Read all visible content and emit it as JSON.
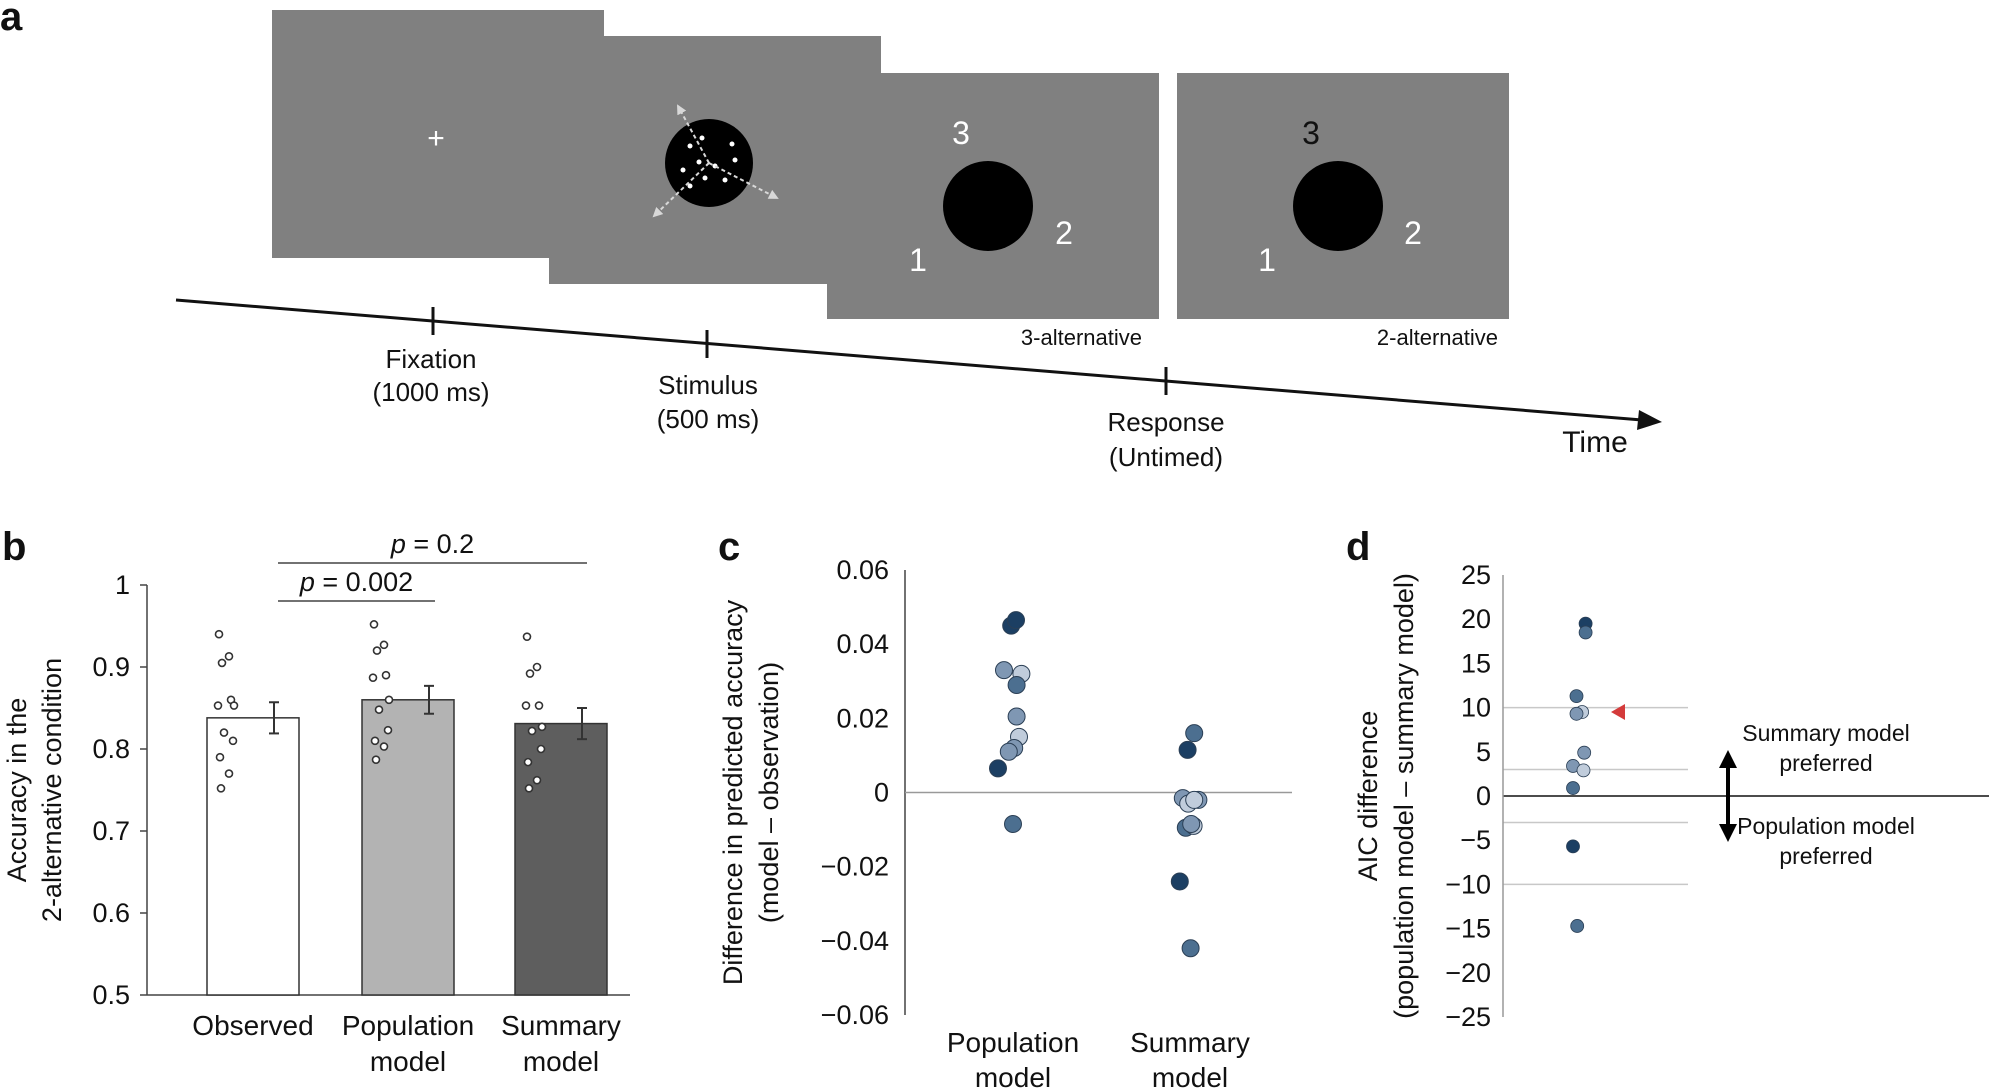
{
  "panel_labels": [
    "a",
    "b",
    "c",
    "d"
  ],
  "timeline": {
    "events": [
      {
        "name": "Fixation",
        "duration": "(1000 ms)"
      },
      {
        "name": "Stimulus",
        "duration": "(500 ms)"
      },
      {
        "name": "Response",
        "duration": "(Untimed)"
      }
    ],
    "axis_label": "Time",
    "fixation_symbol": "+",
    "response_screens": [
      {
        "numbers": [
          "1",
          "2",
          "3"
        ],
        "condition": "3-alternative"
      },
      {
        "numbers": [
          "1",
          "2",
          "3"
        ],
        "condition": "2-alternative"
      }
    ]
  },
  "colors": {
    "screen_gray": "#808080",
    "bar_observed": "#ffffff",
    "bar_population": "#b3b3b3",
    "bar_summary": "#5e5e5e",
    "dot_dark": "#1c3f63",
    "dot_mid": "#4c6f90",
    "dot_light": "#7f97b3",
    "dot_pale": "#c0ccdb",
    "marker_red": "#d43b3b"
  },
  "chart_data": [
    {
      "panel": "b",
      "type": "bar",
      "categories": [
        [
          "Observed"
        ],
        [
          "Population",
          "model"
        ],
        [
          "Summary",
          "model"
        ]
      ],
      "values": [
        0.838,
        0.86,
        0.831
      ],
      "errors": [
        0.019,
        0.017,
        0.019
      ],
      "points": [
        [
          0.94,
          0.913,
          0.905,
          0.86,
          0.853,
          0.853,
          0.82,
          0.81,
          0.79,
          0.77,
          0.752
        ],
        [
          0.952,
          0.927,
          0.92,
          0.89,
          0.887,
          0.86,
          0.848,
          0.823,
          0.81,
          0.803,
          0.787
        ],
        [
          0.937,
          0.9,
          0.892,
          0.853,
          0.853,
          0.827,
          0.822,
          0.8,
          0.784,
          0.762,
          0.752
        ]
      ],
      "ylabel": [
        "Accuracy in the",
        "2-alternative condition"
      ],
      "ylim": [
        0.5,
        1
      ],
      "yticks": [
        "0.5",
        "0.6",
        "0.7",
        "0.8",
        "0.9",
        "1"
      ],
      "significance": [
        {
          "from": 0,
          "to": 1,
          "label_italic": "p",
          "label_rest": " = 0.002"
        },
        {
          "from": 0,
          "to": 2,
          "label_italic": "p",
          "label_rest": " = 0.2"
        }
      ]
    },
    {
      "panel": "c",
      "type": "scatter",
      "categories": [
        [
          "Population",
          "model"
        ],
        [
          "Summary",
          "model"
        ]
      ],
      "ylabel": [
        "Difference in predicted accuracy",
        "(model – observation)"
      ],
      "ylim": [
        -0.06,
        0.06
      ],
      "yticks": [
        "−0.06",
        "−0.04",
        "−0.02",
        "0",
        "0.02",
        "0.04",
        "0.06"
      ],
      "series": [
        {
          "name": "Population model",
          "points": [
            {
              "jitter": -0.03,
              "y": 0.045,
              "shade": "dark"
            },
            {
              "jitter": 0.05,
              "y": 0.0465,
              "shade": "dark"
            },
            {
              "jitter": -0.15,
              "y": 0.033,
              "shade": "light"
            },
            {
              "jitter": 0.14,
              "y": 0.032,
              "shade": "pale"
            },
            {
              "jitter": 0.06,
              "y": 0.029,
              "shade": "mid"
            },
            {
              "jitter": 0.06,
              "y": 0.0205,
              "shade": "light"
            },
            {
              "jitter": 0.1,
              "y": 0.015,
              "shade": "pale"
            },
            {
              "jitter": 0.02,
              "y": 0.012,
              "shade": "light"
            },
            {
              "jitter": -0.07,
              "y": 0.011,
              "shade": "light"
            },
            {
              "jitter": -0.25,
              "y": 0.0065,
              "shade": "dark"
            },
            {
              "jitter": 0.0,
              "y": -0.0085,
              "shade": "mid"
            }
          ]
        },
        {
          "name": "Summary model",
          "points": [
            {
              "jitter": 0.07,
              "y": 0.016,
              "shade": "mid"
            },
            {
              "jitter": -0.04,
              "y": 0.0115,
              "shade": "dark"
            },
            {
              "jitter": -0.12,
              "y": -0.0015,
              "shade": "light"
            },
            {
              "jitter": 0.14,
              "y": -0.002,
              "shade": "light"
            },
            {
              "jitter": -0.03,
              "y": -0.003,
              "shade": "pale"
            },
            {
              "jitter": 0.07,
              "y": -0.002,
              "shade": "pale"
            },
            {
              "jitter": -0.07,
              "y": -0.0095,
              "shade": "mid"
            },
            {
              "jitter": 0.06,
              "y": -0.009,
              "shade": "pale"
            },
            {
              "jitter": 0.02,
              "y": -0.0085,
              "shade": "light"
            },
            {
              "jitter": -0.17,
              "y": -0.024,
              "shade": "dark"
            },
            {
              "jitter": 0.01,
              "y": -0.042,
              "shade": "mid"
            }
          ]
        }
      ]
    },
    {
      "panel": "d",
      "type": "scatter",
      "ylabel": [
        "AIC difference",
        "(population model – summary model)"
      ],
      "ylim": [
        -25,
        25
      ],
      "yticks": [
        "−25",
        "−20",
        "−15",
        "−10",
        "−5",
        "0",
        "5",
        "10",
        "15",
        "20",
        "25"
      ],
      "reference_lines": [
        10,
        3,
        -3,
        -10
      ],
      "points": [
        {
          "jitter": 0.18,
          "y": 19.5,
          "shade": "dark"
        },
        {
          "jitter": 0.18,
          "y": 18.5,
          "shade": "mid"
        },
        {
          "jitter": 0.05,
          "y": 11.3,
          "shade": "mid"
        },
        {
          "jitter": 0.13,
          "y": 9.5,
          "shade": "pale"
        },
        {
          "jitter": 0.05,
          "y": 9.3,
          "shade": "light"
        },
        {
          "jitter": 0.16,
          "y": 4.9,
          "shade": "light"
        },
        {
          "jitter": 0.0,
          "y": 3.4,
          "shade": "light"
        },
        {
          "jitter": 0.15,
          "y": 2.9,
          "shade": "pale"
        },
        {
          "jitter": 0.0,
          "y": 0.9,
          "shade": "mid"
        },
        {
          "jitter": 0.0,
          "y": -5.7,
          "shade": "dark"
        },
        {
          "jitter": 0.06,
          "y": -14.7,
          "shade": "mid"
        }
      ],
      "arrow_marker": {
        "y": 9.5
      },
      "annotations": {
        "up": [
          "Summary model",
          "preferred"
        ],
        "down": [
          "Population model",
          "preferred"
        ]
      }
    }
  ]
}
